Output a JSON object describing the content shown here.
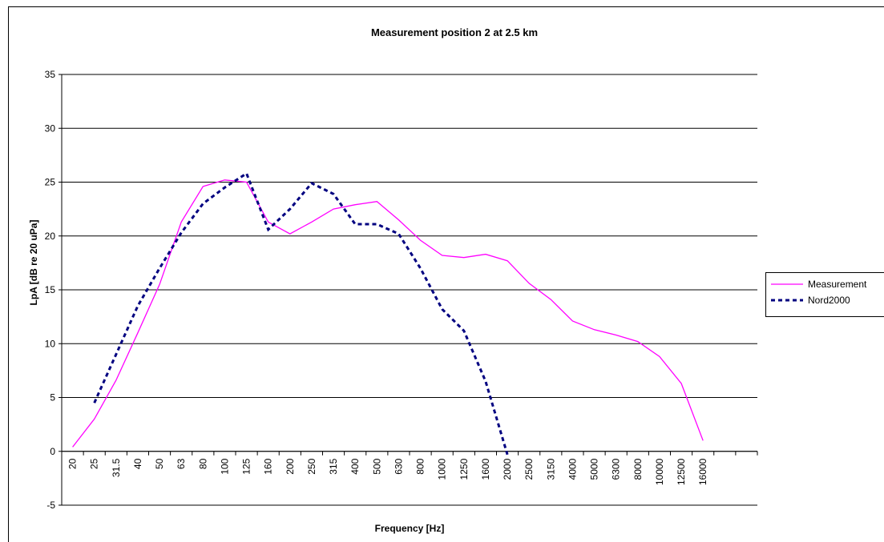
{
  "chart_data": {
    "type": "line",
    "title": "Measurement position 2 at 2.5 km",
    "x_label": "Frequency [Hz]",
    "y_label": "LpA [dB re 20 uPa]",
    "categories": [
      "20",
      "25",
      "31.5",
      "40",
      "50",
      "63",
      "80",
      "100",
      "125",
      "160",
      "200",
      "250",
      "315",
      "400",
      "500",
      "630",
      "800",
      "1000",
      "1250",
      "1600",
      "2000",
      "2500",
      "3150",
      "4000",
      "5000",
      "6300",
      "8000",
      "10000",
      "12500",
      "16000",
      null,
      null
    ],
    "series": [
      {
        "name": "Measurement",
        "color": "#ff00ff",
        "dashed": false,
        "values": [
          0.4,
          3,
          6.6,
          11,
          15.5,
          21.3,
          24.6,
          25.2,
          25,
          21.3,
          20.2,
          21.3,
          22.5,
          22.9,
          23.2,
          21.5,
          19.6,
          18.2,
          18,
          18.3,
          17.7,
          15.6,
          14.1,
          12.1,
          11.3,
          10.8,
          10.2,
          8.8,
          6.3,
          1,
          null,
          null
        ]
      },
      {
        "name": "Nord2000",
        "color": "#000080",
        "dashed": true,
        "values": [
          null,
          4.5,
          9,
          13.5,
          17,
          20.3,
          23,
          24.5,
          25.8,
          20.6,
          22.5,
          24.9,
          23.9,
          21.1,
          21.1,
          20.2,
          17,
          13.2,
          11.2,
          6.5,
          -0.3,
          null,
          null,
          null,
          null,
          null,
          null,
          null,
          null,
          null,
          null,
          null
        ]
      }
    ],
    "ylim": [
      -5,
      35
    ],
    "yticks": [
      -5,
      0,
      5,
      10,
      15,
      20,
      25,
      30,
      35
    ],
    "grid": true,
    "legend": "right"
  }
}
